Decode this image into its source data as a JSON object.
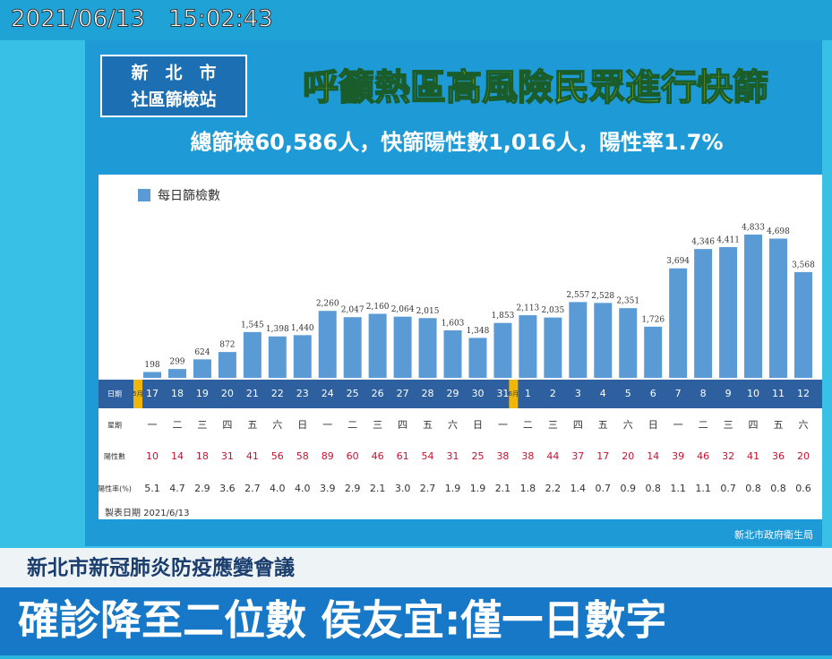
{
  "timestamp": "2021/06/13　15:02:43",
  "station_line1": "新　北　市",
  "station_line2": "社區篩檢站",
  "chart_data": {
    "type": "bar",
    "title": "呼籲熱區高風險民眾進行快篩",
    "subtitle": "總篩檢60,586人，快篩陽性數1,016人，陽性率1.7%",
    "categories": [
      "17",
      "18",
      "19",
      "20",
      "21",
      "22",
      "23",
      "24",
      "25",
      "26",
      "27",
      "28",
      "29",
      "30",
      "31",
      "1",
      "2",
      "3",
      "4",
      "5",
      "6",
      "7",
      "8",
      "9",
      "10",
      "11",
      "12"
    ],
    "month_labels": [
      "5月",
      "6月"
    ],
    "series": [
      {
        "name": "每日篩檢數",
        "color": "#5b9bd5",
        "values": [
          198,
          299,
          624,
          872,
          1545,
          1398,
          1440,
          2260,
          2047,
          2160,
          2064,
          2015,
          1603,
          1348,
          1853,
          2113,
          2035,
          2557,
          2528,
          2351,
          1726,
          3694,
          4346,
          4411,
          4833,
          4698,
          3568
        ],
        "value_labels": [
          "198",
          "299",
          "624",
          "872",
          "1,545",
          "1,398",
          "1,440",
          "2,260",
          "2,047",
          "2,160",
          "2,064",
          "2,015",
          "1,603",
          "1,348",
          "1,853",
          "2,113",
          "2,035",
          "2,557",
          "2,528",
          "2,351",
          "1,726",
          "3,694",
          "4,346",
          "4,411",
          "4,833",
          "4,698",
          "3,568"
        ]
      }
    ],
    "row_labels": {
      "date": "日期",
      "weekday": "星期",
      "positive": "陽性數",
      "rate": "陽性率(%)"
    },
    "weekdays": [
      "一",
      "二",
      "三",
      "四",
      "五",
      "六",
      "日",
      "一",
      "二",
      "三",
      "四",
      "五",
      "六",
      "日",
      "一",
      "二",
      "三",
      "四",
      "五",
      "六",
      "日",
      "一",
      "二",
      "三",
      "四",
      "五",
      "六"
    ],
    "positives": [
      10,
      14,
      18,
      31,
      41,
      56,
      58,
      89,
      60,
      46,
      61,
      54,
      31,
      25,
      38,
      38,
      44,
      37,
      17,
      20,
      14,
      39,
      46,
      32,
      41,
      36,
      20
    ],
    "rates": [
      "5.1",
      "4.7",
      "2.9",
      "3.6",
      "2.7",
      "4.0",
      "4.0",
      "3.9",
      "2.9",
      "2.1",
      "3.0",
      "2.7",
      "1.9",
      "1.9",
      "2.1",
      "1.8",
      "2.2",
      "1.4",
      "0.7",
      "0.9",
      "0.8",
      "1.1",
      "1.1",
      "0.7",
      "0.8",
      "0.8",
      "0.6"
    ],
    "made_date": "製表日期  2021/6/13",
    "source": "新北市政府衛生局"
  },
  "caption": "新北市新冠肺炎防疫應變會議",
  "headline": "確診降至二位數 侯友宜:僅一日數字"
}
